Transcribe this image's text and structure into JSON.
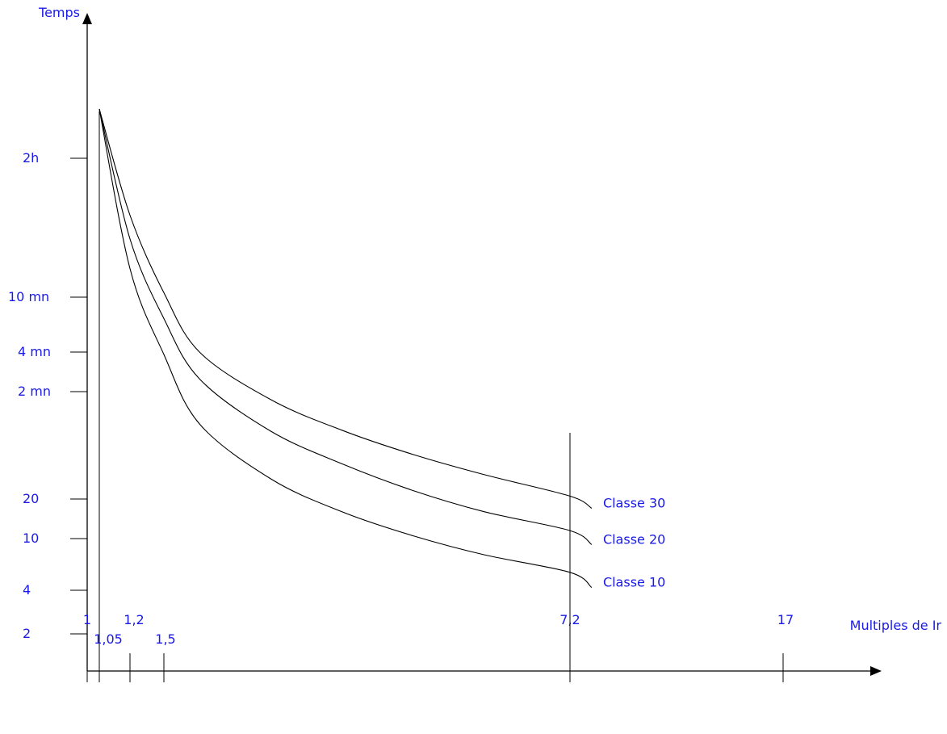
{
  "chart_data": {
    "type": "line",
    "title": "",
    "xlabel": "Multiples de Ir",
    "ylabel": "Temps",
    "x_ticks": [
      {
        "value": 1,
        "label": "1"
      },
      {
        "value": 1.05,
        "label": "1,05"
      },
      {
        "value": 1.2,
        "label": "1,2"
      },
      {
        "value": 1.5,
        "label": "1,5"
      },
      {
        "value": 7.2,
        "label": "7,2"
      },
      {
        "value": 17,
        "label": "17"
      }
    ],
    "y_ticks": [
      {
        "seconds": 2,
        "label": "2"
      },
      {
        "seconds": 4,
        "label": "4"
      },
      {
        "seconds": 10,
        "label": "10"
      },
      {
        "seconds": 20,
        "label": "20"
      },
      {
        "seconds": 120,
        "label": "2 mn"
      },
      {
        "seconds": 240,
        "label": "4 mn"
      },
      {
        "seconds": 600,
        "label": "10 mn"
      },
      {
        "seconds": 7200,
        "label": "2h"
      }
    ],
    "reference_line": {
      "x": 7.2
    },
    "series": [
      {
        "name": "Classe 30",
        "points": [
          [
            1.05,
            20000
          ],
          [
            1.2,
            2600
          ],
          [
            1.5,
            650
          ],
          [
            2,
            240
          ],
          [
            3,
            105
          ],
          [
            4,
            63
          ],
          [
            5,
            42
          ],
          [
            6,
            30
          ],
          [
            7.2,
            21
          ],
          [
            8.2,
            17
          ]
        ]
      },
      {
        "name": "Classe 20",
        "points": [
          [
            1.05,
            20000
          ],
          [
            1.2,
            1700
          ],
          [
            1.5,
            420
          ],
          [
            2,
            150
          ],
          [
            3,
            62
          ],
          [
            4,
            36
          ],
          [
            5,
            23
          ],
          [
            6,
            16
          ],
          [
            7.2,
            11.5
          ],
          [
            8.2,
            9
          ]
        ]
      },
      {
        "name": "Classe 10",
        "points": [
          [
            1.05,
            20000
          ],
          [
            1.2,
            1000
          ],
          [
            1.5,
            230
          ],
          [
            2,
            70
          ],
          [
            3,
            28
          ],
          [
            4,
            16
          ],
          [
            5,
            10.5
          ],
          [
            6,
            7.5
          ],
          [
            7.2,
            5.5
          ],
          [
            8.2,
            4.2
          ]
        ]
      }
    ]
  }
}
